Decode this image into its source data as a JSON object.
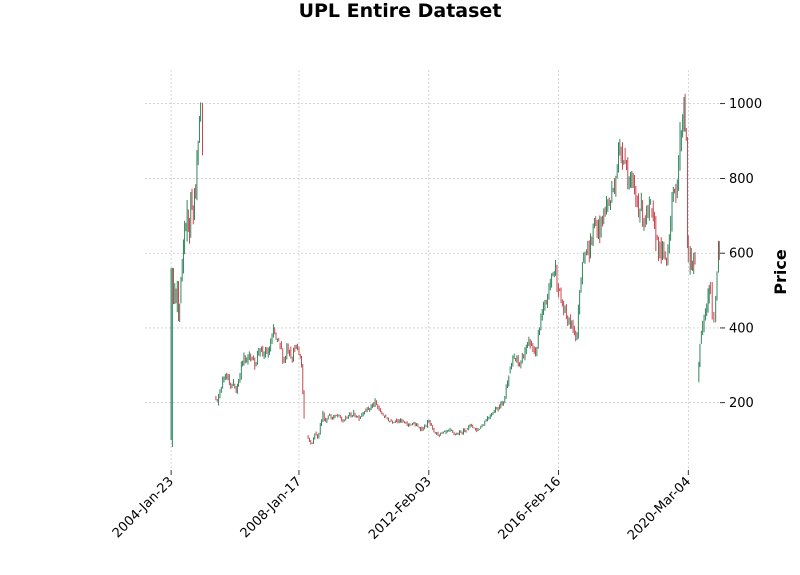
{
  "chart_data": {
    "type": "candlestick",
    "title": "UPL Entire Dataset",
    "ylabel": "Price",
    "xlabel": "",
    "ylim": [
      20,
      1090
    ],
    "y_ticks": [
      200,
      400,
      600,
      800,
      1000
    ],
    "x_tick_labels": [
      "2004-Jan-23",
      "2008-Jan-17",
      "2012-Feb-03",
      "2016-Feb-16",
      "2020-Mar-04"
    ],
    "x_tick_dates": [
      "2004-01-23",
      "2008-01-17",
      "2012-02-03",
      "2016-02-16",
      "2020-03-04"
    ],
    "x_range": [
      "2003-04-01",
      "2021-02-28"
    ],
    "grid": true,
    "y_axis_side": "right",
    "colors": {
      "up": "#1a7a4c",
      "down": "#c2343f",
      "grid": "#bdbdbd",
      "text": "#000000"
    },
    "close_series": [
      [
        "2004-01-23",
        100
      ],
      [
        "2004-02-06",
        560
      ],
      [
        "2004-02-20",
        480
      ],
      [
        "2004-03-05",
        500
      ],
      [
        "2004-03-19",
        460
      ],
      [
        "2004-04-02",
        520
      ],
      [
        "2004-04-16",
        430
      ],
      [
        "2004-04-30",
        470
      ],
      [
        "2004-05-14",
        530
      ],
      [
        "2004-05-28",
        550
      ],
      [
        "2004-06-11",
        620
      ],
      [
        "2004-06-25",
        660
      ],
      [
        "2004-07-09",
        640
      ],
      [
        "2004-07-23",
        700
      ],
      [
        "2004-08-06",
        690
      ],
      [
        "2004-08-20",
        660
      ],
      [
        "2004-09-03",
        760
      ],
      [
        "2004-09-17",
        720
      ],
      [
        "2004-10-01",
        690
      ],
      [
        "2004-10-15",
        780
      ],
      [
        "2004-10-29",
        760
      ],
      [
        "2004-11-12",
        840
      ],
      [
        "2004-11-26",
        900
      ],
      [
        "2004-12-10",
        960
      ],
      [
        "2004-12-24",
        1000
      ],
      [
        "2005-01-14",
        880
      ],
      [
        "2005-06-01",
        215
      ],
      [
        "2005-07-01",
        200
      ],
      [
        "2005-08-01",
        230
      ],
      [
        "2005-09-01",
        260
      ],
      [
        "2005-10-01",
        280
      ],
      [
        "2005-11-01",
        270
      ],
      [
        "2005-12-01",
        240
      ],
      [
        "2006-01-01",
        250
      ],
      [
        "2006-02-01",
        230
      ],
      [
        "2006-03-01",
        260
      ],
      [
        "2006-04-01",
        300
      ],
      [
        "2006-05-01",
        320
      ],
      [
        "2006-06-01",
        310
      ],
      [
        "2006-07-01",
        330
      ],
      [
        "2006-08-01",
        320
      ],
      [
        "2006-09-01",
        300
      ],
      [
        "2006-10-01",
        330
      ],
      [
        "2006-11-01",
        350
      ],
      [
        "2006-12-01",
        320
      ],
      [
        "2007-01-01",
        340
      ],
      [
        "2007-02-01",
        330
      ],
      [
        "2007-03-01",
        360
      ],
      [
        "2007-04-01",
        390
      ],
      [
        "2007-05-01",
        370
      ],
      [
        "2007-06-01",
        360
      ],
      [
        "2007-07-01",
        340
      ],
      [
        "2007-08-01",
        310
      ],
      [
        "2007-09-01",
        350
      ],
      [
        "2007-10-01",
        340
      ],
      [
        "2007-11-01",
        320
      ],
      [
        "2007-12-01",
        350
      ],
      [
        "2008-01-17",
        330
      ],
      [
        "2008-02-15",
        300
      ],
      [
        "2008-03-15",
        160
      ],
      [
        "2008-04-15",
        110
      ],
      [
        "2008-05-15",
        100
      ],
      [
        "2008-06-15",
        90
      ],
      [
        "2008-07-15",
        120
      ],
      [
        "2008-08-15",
        105
      ],
      [
        "2008-09-15",
        140
      ],
      [
        "2008-10-15",
        170
      ],
      [
        "2008-11-15",
        150
      ],
      [
        "2008-12-15",
        165
      ],
      [
        "2009-02-01",
        160
      ],
      [
        "2009-04-01",
        165
      ],
      [
        "2009-06-01",
        150
      ],
      [
        "2009-08-01",
        165
      ],
      [
        "2009-10-01",
        170
      ],
      [
        "2009-12-01",
        160
      ],
      [
        "2010-02-01",
        180
      ],
      [
        "2010-04-01",
        185
      ],
      [
        "2010-06-01",
        200
      ],
      [
        "2010-08-01",
        175
      ],
      [
        "2010-10-01",
        160
      ],
      [
        "2010-12-01",
        150
      ],
      [
        "2011-02-01",
        155
      ],
      [
        "2011-04-01",
        150
      ],
      [
        "2011-06-01",
        140
      ],
      [
        "2011-08-01",
        145
      ],
      [
        "2011-10-01",
        135
      ],
      [
        "2011-12-01",
        130
      ],
      [
        "2012-02-03",
        150
      ],
      [
        "2012-04-01",
        120
      ],
      [
        "2012-06-01",
        115
      ],
      [
        "2012-08-01",
        120
      ],
      [
        "2012-10-01",
        125
      ],
      [
        "2012-12-01",
        115
      ],
      [
        "2013-02-01",
        120
      ],
      [
        "2013-04-01",
        130
      ],
      [
        "2013-06-01",
        140
      ],
      [
        "2013-08-01",
        125
      ],
      [
        "2013-10-01",
        140
      ],
      [
        "2013-12-01",
        160
      ],
      [
        "2014-02-01",
        175
      ],
      [
        "2014-04-01",
        190
      ],
      [
        "2014-06-01",
        200
      ],
      [
        "2014-08-01",
        280
      ],
      [
        "2014-10-01",
        320
      ],
      [
        "2014-12-01",
        300
      ],
      [
        "2015-02-01",
        340
      ],
      [
        "2015-04-01",
        360
      ],
      [
        "2015-06-01",
        330
      ],
      [
        "2015-08-01",
        420
      ],
      [
        "2015-10-01",
        470
      ],
      [
        "2015-12-01",
        540
      ],
      [
        "2016-01-15",
        560
      ],
      [
        "2016-02-16",
        500
      ],
      [
        "2016-04-01",
        460
      ],
      [
        "2016-06-01",
        420
      ],
      [
        "2016-08-01",
        400
      ],
      [
        "2016-09-15",
        380
      ],
      [
        "2016-10-15",
        500
      ],
      [
        "2016-11-15",
        580
      ],
      [
        "2016-12-15",
        610
      ],
      [
        "2017-02-01",
        600
      ],
      [
        "2017-04-01",
        680
      ],
      [
        "2017-06-01",
        660
      ],
      [
        "2017-08-01",
        720
      ],
      [
        "2017-10-01",
        740
      ],
      [
        "2017-12-01",
        810
      ],
      [
        "2018-01-15",
        880
      ],
      [
        "2018-03-01",
        870
      ],
      [
        "2018-05-01",
        790
      ],
      [
        "2018-07-01",
        760
      ],
      [
        "2018-09-01",
        720
      ],
      [
        "2018-11-01",
        690
      ],
      [
        "2019-01-01",
        720
      ],
      [
        "2019-03-01",
        640
      ],
      [
        "2019-05-01",
        600
      ],
      [
        "2019-07-01",
        580
      ],
      [
        "2019-09-01",
        740
      ],
      [
        "2019-10-15",
        760
      ],
      [
        "2019-12-01",
        900
      ],
      [
        "2020-01-15",
        1000
      ],
      [
        "2020-02-10",
        900
      ],
      [
        "2020-02-25",
        640
      ],
      [
        "2020-03-04",
        560
      ],
      [
        "2020-03-25",
        600
      ],
      [
        "2020-04-20",
        560
      ],
      [
        "2020-05-20",
        580
      ],
      [
        "2020-06-20",
        260
      ],
      [
        "2020-07-15",
        360
      ],
      [
        "2020-08-15",
        400
      ],
      [
        "2020-09-15",
        440
      ],
      [
        "2020-10-15",
        480
      ],
      [
        "2020-11-10",
        510
      ],
      [
        "2020-12-01",
        430
      ],
      [
        "2020-12-20",
        420
      ],
      [
        "2021-01-10",
        480
      ],
      [
        "2021-01-25",
        560
      ],
      [
        "2021-02-10",
        620
      ],
      [
        "2021-02-20",
        600
      ]
    ]
  }
}
